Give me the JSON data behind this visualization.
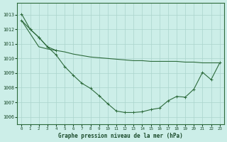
{
  "background_color": "#cceee8",
  "grid_color": "#aad4cc",
  "line_color": "#2d6b3c",
  "xlabel": "Graphe pression niveau de la mer (hPa)",
  "ylim": [
    1005.5,
    1013.8
  ],
  "xlim": [
    -0.5,
    23.5
  ],
  "yticks": [
    1006,
    1007,
    1008,
    1009,
    1010,
    1011,
    1012,
    1013
  ],
  "xticks": [
    0,
    1,
    2,
    3,
    4,
    5,
    6,
    7,
    8,
    9,
    10,
    11,
    12,
    13,
    14,
    15,
    16,
    17,
    18,
    19,
    20,
    21,
    22,
    23
  ],
  "line1_x": [
    0,
    1,
    2,
    3,
    4,
    5,
    6,
    7,
    8,
    9,
    10,
    11,
    12,
    13,
    14,
    15,
    16,
    17,
    18,
    19,
    20,
    21,
    22,
    23
  ],
  "line1_y": [
    1012.6,
    1011.7,
    1010.8,
    1010.65,
    1010.55,
    1010.45,
    1010.3,
    1010.2,
    1010.1,
    1010.05,
    1010.0,
    1009.95,
    1009.9,
    1009.85,
    1009.85,
    1009.8,
    1009.8,
    1009.8,
    1009.8,
    1009.75,
    1009.75,
    1009.7,
    1009.7,
    1009.7
  ],
  "line2_x": [
    0,
    1,
    2,
    3,
    4
  ],
  "line2_y": [
    1012.6,
    1012.0,
    1011.45,
    1010.8,
    1010.55
  ],
  "line3_x": [
    0,
    1,
    2,
    3,
    4,
    5,
    6,
    7,
    8,
    9,
    10,
    11,
    12,
    13,
    14,
    15,
    16,
    17,
    18,
    19,
    20,
    21,
    22,
    23
  ],
  "line3_y": [
    1013.05,
    1012.0,
    1011.45,
    1010.8,
    1010.25,
    1009.45,
    1008.85,
    1008.3,
    1007.95,
    1007.45,
    1006.9,
    1006.4,
    1006.3,
    1006.3,
    1006.35,
    1006.5,
    1006.6,
    1007.1,
    1007.4,
    1007.35,
    1007.9,
    1009.05,
    1008.55,
    1009.7
  ]
}
